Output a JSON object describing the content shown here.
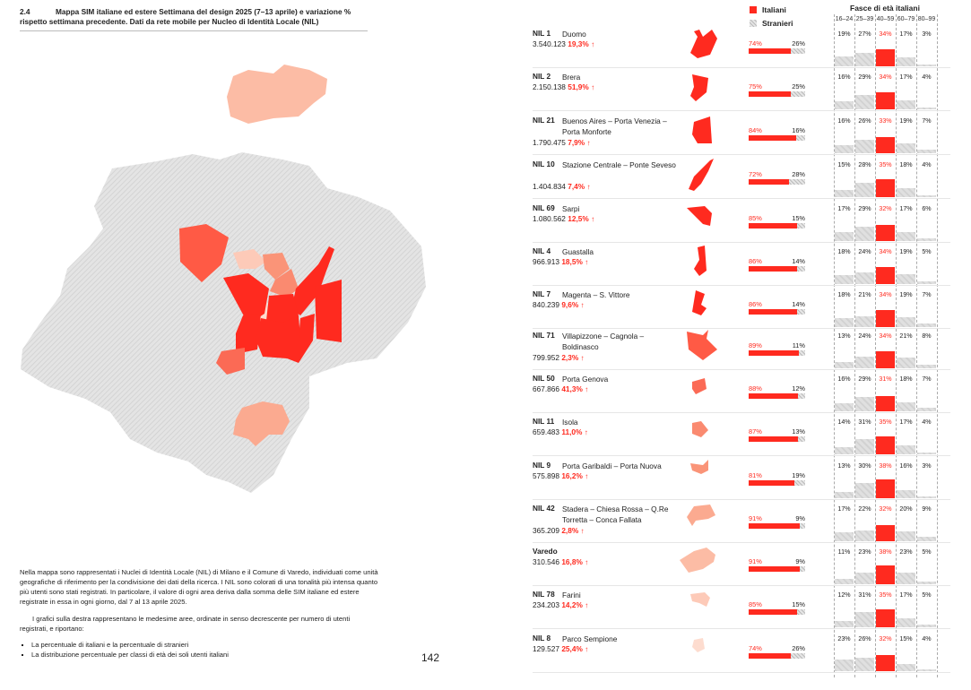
{
  "header": {
    "section": "2.4",
    "title": "Mappa SIM italiane ed estere Settimana del design 2025 (7–13 aprile) e variazione % rispetto settimana precedente. Dati da rete mobile per Nucleo di Identità Locale (NIL)"
  },
  "body": {
    "p1": "Nella mappa sono rappresentati i Nuclei di Identità Locale (NIL) di Milano e il Comune di Varedo, individuati come unità geografiche di riferimento per la condivisione dei dati della ricerca. I NIL sono colorati di una tonalità più intensa quanto più utenti sono stati registrati. In particolare, il valore di ogni area deriva dalla somma delle SIM italiane ed estere registrate in essa in ogni giorno, dal 7 al 13 aprile 2025.",
    "p2": "I grafici sulla destra rappresentano le medesime aree, ordinate in senso decrescente per numero di utenti registrati, e riportano:",
    "bullets": [
      "La percentuale di italiani e la percentuale di stranieri",
      "La distribuzione percentuale per classi di età dei soli utenti italiani"
    ]
  },
  "page_number": "142",
  "legend": {
    "italiani": "Italiani",
    "stranieri": "Stranieri",
    "age_title": "Fasce di età italiani",
    "age_groups": [
      "16–24",
      "25–39",
      "40–59",
      "60–79",
      "80–99"
    ]
  },
  "colors": {
    "accent": "#ff2a1f",
    "hatch": "#d2d2d2"
  },
  "rows": [
    {
      "code": "NIL 1",
      "name": "Duomo",
      "total": "3.540.123",
      "change": "19,3%",
      "it": 74,
      "st": 26,
      "ages": [
        19,
        27,
        34,
        17,
        3
      ],
      "color": "#ff2a1f"
    },
    {
      "code": "NIL 2",
      "name": "Brera",
      "total": "2.150.138",
      "change": "51,9%",
      "it": 75,
      "st": 25,
      "ages": [
        16,
        29,
        34,
        17,
        4
      ],
      "color": "#ff2a1f"
    },
    {
      "code": "NIL 21",
      "name": "Buenos Aires – Porta Venezia – Porta Monforte",
      "total": "1.790.475",
      "change": "7,9%",
      "it": 84,
      "st": 16,
      "ages": [
        16,
        26,
        33,
        19,
        7
      ],
      "color": "#ff2a1f"
    },
    {
      "code": "NIL 10",
      "name": "Stazione Centrale – Ponte Seveso",
      "total": "1.404.834",
      "change": "7,4%",
      "it": 72,
      "st": 28,
      "ages": [
        15,
        28,
        35,
        18,
        4
      ],
      "color": "#ff2a1f"
    },
    {
      "code": "NIL 69",
      "name": "Sarpi",
      "total": "1.080.562",
      "change": "12,5%",
      "it": 85,
      "st": 15,
      "ages": [
        17,
        29,
        32,
        17,
        6
      ],
      "color": "#ff2a1f"
    },
    {
      "code": "NIL 4",
      "name": "Guastalla",
      "total": "966.913",
      "change": "18,5%",
      "it": 86,
      "st": 14,
      "ages": [
        18,
        24,
        34,
        19,
        5
      ],
      "color": "#ff2a1f"
    },
    {
      "code": "NIL 7",
      "name": "Magenta – S. Vittore",
      "total": "840.239",
      "change": "9,6%",
      "it": 86,
      "st": 14,
      "ages": [
        18,
        21,
        34,
        19,
        7
      ],
      "color": "#ff2a1f"
    },
    {
      "code": "NIL 71",
      "name": "Villapizzone – Cagnola – Boldinasco",
      "total": "799.952",
      "change": "2,3%",
      "it": 89,
      "st": 11,
      "ages": [
        13,
        24,
        34,
        21,
        8
      ],
      "color": "#ff5a45"
    },
    {
      "code": "NIL 50",
      "name": "Porta Genova",
      "total": "667.866",
      "change": "41,3%",
      "it": 88,
      "st": 12,
      "ages": [
        16,
        29,
        31,
        18,
        7
      ],
      "color": "#fb6a55"
    },
    {
      "code": "NIL 11",
      "name": "Isola",
      "total": "659.483",
      "change": "11,0%",
      "it": 87,
      "st": 13,
      "ages": [
        14,
        31,
        35,
        17,
        4
      ],
      "color": "#fa8a70"
    },
    {
      "code": "NIL 9",
      "name": "Porta Garibaldi – Porta Nuova",
      "total": "575.898",
      "change": "16,2%",
      "it": 81,
      "st": 19,
      "ages": [
        13,
        30,
        38,
        16,
        3
      ],
      "color": "#fa9478"
    },
    {
      "code": "NIL 42",
      "name": "Stadera – Chiesa Rossa – Q.Re Torretta – Conca Fallata",
      "total": "365.209",
      "change": "2,8%",
      "it": 91,
      "st": 9,
      "ages": [
        17,
        22,
        32,
        20,
        9
      ],
      "color": "#fbaa90"
    },
    {
      "code": "Varedo",
      "name": "",
      "total": "310.546",
      "change": "16,8%",
      "it": 91,
      "st": 9,
      "ages": [
        11,
        23,
        38,
        23,
        5
      ],
      "color": "#fcbca5"
    },
    {
      "code": "NIL 78",
      "name": "Farini",
      "total": "234.203",
      "change": "14,2%",
      "it": 85,
      "st": 15,
      "ages": [
        12,
        31,
        35,
        17,
        5
      ],
      "color": "#fdcab8"
    },
    {
      "code": "NIL 8",
      "name": "Parco Sempione",
      "total": "129.527",
      "change": "25,4%",
      "it": 74,
      "st": 26,
      "ages": [
        23,
        26,
        32,
        15,
        4
      ],
      "color": "#fddccf"
    }
  ],
  "arrow_icon": "arrow-up-icon"
}
